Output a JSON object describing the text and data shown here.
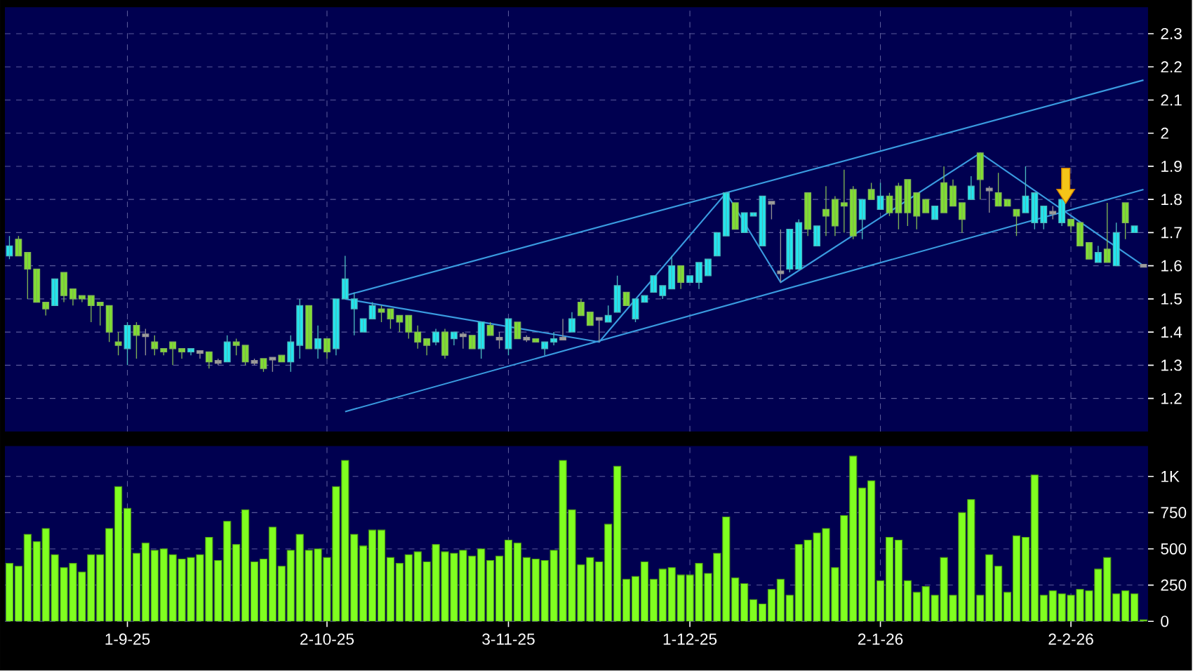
{
  "chart_data": [
    {
      "type": "candlestick",
      "tick_labels": "y",
      "grid": true,
      "ylim": [
        1.1,
        2.38
      ],
      "yticks": [
        1.2,
        1.3,
        1.4,
        1.5,
        1.6,
        1.7,
        1.8,
        1.9,
        2,
        2.1,
        2.2,
        2.3
      ],
      "categories": [
        null,
        null,
        null,
        null,
        null,
        null,
        null,
        null,
        null,
        null,
        null,
        null,
        null,
        null,
        null,
        null,
        null,
        null,
        null,
        null,
        null,
        null,
        null,
        null,
        null,
        null,
        null,
        null,
        null,
        null,
        null,
        null,
        null,
        null,
        null,
        null,
        null,
        null,
        null,
        null,
        null,
        null,
        null,
        null,
        null,
        null,
        null,
        null,
        null,
        null,
        null,
        null,
        null,
        null,
        null,
        null,
        null,
        null,
        null,
        null,
        null,
        null,
        null,
        null,
        null,
        null,
        null,
        null,
        null,
        null,
        null,
        null,
        null,
        null,
        null,
        null,
        null,
        null,
        null,
        null,
        null,
        null,
        null,
        null,
        null,
        null,
        null,
        null,
        null,
        null,
        null,
        null,
        null,
        null,
        null,
        null,
        null,
        null,
        null,
        null,
        null,
        null,
        null,
        null,
        null,
        null,
        null,
        null,
        null,
        null,
        null,
        null,
        null,
        null,
        null,
        null,
        null,
        null,
        null,
        null,
        null,
        null,
        null,
        null,
        null,
        null
      ],
      "ohlc": [
        [
          1.63,
          1.69,
          1.62,
          1.66
        ],
        [
          1.68,
          1.69,
          1.63,
          1.63
        ],
        [
          1.64,
          1.64,
          1.5,
          1.59
        ],
        [
          1.59,
          1.59,
          1.49,
          1.49
        ],
        [
          1.49,
          1.49,
          1.45,
          1.47
        ],
        [
          1.48,
          1.56,
          1.48,
          1.56
        ],
        [
          1.58,
          1.58,
          1.49,
          1.51
        ],
        [
          1.53,
          1.53,
          1.48,
          1.5
        ],
        [
          1.51,
          1.51,
          1.49,
          1.5
        ],
        [
          1.51,
          1.51,
          1.43,
          1.48
        ],
        [
          1.49,
          1.49,
          1.42,
          1.48
        ],
        [
          1.48,
          1.48,
          1.37,
          1.4
        ],
        [
          1.37,
          1.4,
          1.33,
          1.36
        ],
        [
          1.35,
          1.43,
          1.3,
          1.42
        ],
        [
          1.42,
          1.43,
          1.32,
          1.39
        ],
        [
          1.39,
          1.41,
          1.33,
          1.39
        ],
        [
          1.37,
          1.39,
          1.33,
          1.35
        ],
        [
          1.35,
          1.35,
          1.33,
          1.34
        ],
        [
          1.37,
          1.37,
          1.3,
          1.35
        ],
        [
          1.35,
          1.35,
          1.32,
          1.34
        ],
        [
          1.34,
          1.35,
          1.33,
          1.35
        ],
        [
          1.34,
          1.34,
          1.32,
          1.34
        ],
        [
          1.34,
          1.34,
          1.29,
          1.31
        ],
        [
          1.31,
          1.32,
          1.3,
          1.31
        ],
        [
          1.31,
          1.39,
          1.31,
          1.37
        ],
        [
          1.37,
          1.38,
          1.33,
          1.36
        ],
        [
          1.36,
          1.36,
          1.3,
          1.31
        ],
        [
          1.31,
          1.32,
          1.3,
          1.31
        ],
        [
          1.32,
          1.32,
          1.28,
          1.29
        ],
        [
          1.32,
          1.32,
          1.28,
          1.32
        ],
        [
          1.33,
          1.33,
          1.31,
          1.31
        ],
        [
          1.31,
          1.39,
          1.28,
          1.37
        ],
        [
          1.36,
          1.5,
          1.32,
          1.48
        ],
        [
          1.48,
          1.48,
          1.35,
          1.35
        ],
        [
          1.35,
          1.42,
          1.32,
          1.38
        ],
        [
          1.38,
          1.38,
          1.32,
          1.34
        ],
        [
          1.35,
          1.5,
          1.33,
          1.5
        ],
        [
          1.5,
          1.63,
          1.5,
          1.56
        ],
        [
          1.47,
          1.52,
          1.39,
          1.5
        ],
        [
          1.4,
          1.44,
          1.4,
          1.44
        ],
        [
          1.44,
          1.49,
          1.44,
          1.48
        ],
        [
          1.47,
          1.48,
          1.43,
          1.46
        ],
        [
          1.47,
          1.47,
          1.41,
          1.44
        ],
        [
          1.45,
          1.45,
          1.4,
          1.43
        ],
        [
          1.45,
          1.45,
          1.38,
          1.4
        ],
        [
          1.4,
          1.42,
          1.35,
          1.37
        ],
        [
          1.38,
          1.38,
          1.33,
          1.36
        ],
        [
          1.37,
          1.41,
          1.36,
          1.4
        ],
        [
          1.4,
          1.41,
          1.32,
          1.33
        ],
        [
          1.38,
          1.4,
          1.36,
          1.4
        ],
        [
          1.39,
          1.4,
          1.35,
          1.39
        ],
        [
          1.39,
          1.39,
          1.35,
          1.35
        ],
        [
          1.35,
          1.43,
          1.32,
          1.43
        ],
        [
          1.42,
          1.43,
          1.39,
          1.39
        ],
        [
          1.38,
          1.4,
          1.35,
          1.38
        ],
        [
          1.35,
          1.44,
          1.33,
          1.44
        ],
        [
          1.43,
          1.43,
          1.38,
          1.38
        ],
        [
          1.38,
          1.39,
          1.37,
          1.38
        ],
        [
          1.38,
          1.38,
          1.37,
          1.37
        ],
        [
          1.35,
          1.37,
          1.33,
          1.37
        ],
        [
          1.37,
          1.4,
          1.36,
          1.38
        ],
        [
          1.38,
          1.44,
          1.38,
          1.38
        ],
        [
          1.4,
          1.46,
          1.4,
          1.44
        ],
        [
          1.49,
          1.5,
          1.45,
          1.45
        ],
        [
          1.46,
          1.46,
          1.42,
          1.42
        ],
        [
          1.44,
          1.44,
          1.37,
          1.44
        ],
        [
          1.43,
          1.48,
          1.43,
          1.45
        ],
        [
          1.46,
          1.57,
          1.46,
          1.54
        ],
        [
          1.52,
          1.52,
          1.48,
          1.48
        ],
        [
          1.44,
          1.5,
          1.43,
          1.5
        ],
        [
          1.49,
          1.51,
          1.49,
          1.51
        ],
        [
          1.52,
          1.57,
          1.52,
          1.57
        ],
        [
          1.51,
          1.54,
          1.5,
          1.54
        ],
        [
          1.53,
          1.63,
          1.53,
          1.6
        ],
        [
          1.6,
          1.6,
          1.53,
          1.55
        ],
        [
          1.55,
          1.57,
          1.55,
          1.57
        ],
        [
          1.55,
          1.61,
          1.53,
          1.61
        ],
        [
          1.57,
          1.62,
          1.57,
          1.62
        ],
        [
          1.63,
          1.7,
          1.63,
          1.7
        ],
        [
          1.69,
          1.82,
          1.69,
          1.82
        ],
        [
          1.79,
          1.79,
          1.71,
          1.71
        ],
        [
          1.7,
          1.76,
          1.7,
          1.76
        ],
        [
          1.75,
          1.76,
          1.75,
          1.76
        ],
        [
          1.66,
          1.81,
          1.66,
          1.81
        ],
        [
          1.79,
          1.79,
          1.74,
          1.79
        ],
        [
          1.58,
          1.71,
          1.55,
          1.58
        ],
        [
          1.59,
          1.71,
          1.58,
          1.71
        ],
        [
          1.59,
          1.74,
          1.59,
          1.73
        ],
        [
          1.82,
          1.82,
          1.69,
          1.71
        ],
        [
          1.66,
          1.72,
          1.66,
          1.72
        ],
        [
          1.77,
          1.84,
          1.69,
          1.75
        ],
        [
          1.8,
          1.81,
          1.69,
          1.72
        ],
        [
          1.79,
          1.89,
          1.7,
          1.78
        ],
        [
          1.83,
          1.84,
          1.68,
          1.69
        ],
        [
          1.74,
          1.8,
          1.68,
          1.8
        ],
        [
          1.83,
          1.85,
          1.8,
          1.8
        ],
        [
          1.77,
          1.85,
          1.77,
          1.81
        ],
        [
          1.81,
          1.82,
          1.75,
          1.76
        ],
        [
          1.84,
          1.85,
          1.71,
          1.76
        ],
        [
          1.86,
          1.86,
          1.72,
          1.76
        ],
        [
          1.82,
          1.82,
          1.71,
          1.75
        ],
        [
          1.8,
          1.8,
          1.76,
          1.76
        ],
        [
          1.74,
          1.78,
          1.74,
          1.78
        ],
        [
          1.85,
          1.9,
          1.76,
          1.76
        ],
        [
          1.84,
          1.86,
          1.78,
          1.78
        ],
        [
          1.79,
          1.79,
          1.7,
          1.74
        ],
        [
          1.8,
          1.87,
          1.8,
          1.84
        ],
        [
          1.94,
          1.94,
          1.8,
          1.86
        ],
        [
          1.83,
          1.84,
          1.76,
          1.83
        ],
        [
          1.82,
          1.88,
          1.78,
          1.78
        ],
        [
          1.8,
          1.8,
          1.78,
          1.78
        ],
        [
          1.77,
          1.77,
          1.69,
          1.75
        ],
        [
          1.76,
          1.9,
          1.76,
          1.81
        ],
        [
          1.73,
          1.82,
          1.71,
          1.82
        ],
        [
          1.73,
          1.78,
          1.71,
          1.78
        ],
        [
          1.76,
          1.78,
          1.74,
          1.76
        ],
        [
          1.73,
          1.8,
          1.72,
          1.8
        ],
        [
          1.74,
          1.74,
          1.7,
          1.72
        ],
        [
          1.73,
          1.73,
          1.66,
          1.66
        ],
        [
          1.67,
          1.67,
          1.62,
          1.62
        ],
        [
          1.61,
          1.66,
          1.61,
          1.64
        ],
        [
          1.65,
          1.79,
          1.61,
          1.61
        ],
        [
          1.6,
          1.73,
          1.6,
          1.7
        ],
        [
          1.79,
          1.79,
          1.68,
          1.73
        ],
        [
          1.7,
          1.72,
          1.7,
          1.72
        ],
        [
          1.6,
          1.6,
          1.6,
          1.6
        ]
      ],
      "colors": [
        "#20e8f0",
        "#80e030",
        "#80e030",
        "#80e030",
        "#80e030",
        "#20e8f0",
        "#80e030",
        "#80e030",
        "#80e030",
        "#80e030",
        "#80e030",
        "#80e030",
        "#80e030",
        "#20e8f0",
        "#80e030",
        "#a0a0a0",
        "#80e030",
        "#80e030",
        "#80e030",
        "#80e030",
        "#20e8f0",
        "#a0a0a0",
        "#80e030",
        "#a0a0a0",
        "#20e8f0",
        "#80e030",
        "#80e030",
        "#a0a0a0",
        "#80e030",
        "#a0a0a0",
        "#80e030",
        "#20e8f0",
        "#20e8f0",
        "#80e030",
        "#20e8f0",
        "#80e030",
        "#20e8f0",
        "#20e8f0",
        "#20e8f0",
        "#20e8f0",
        "#20e8f0",
        "#80e030",
        "#80e030",
        "#80e030",
        "#80e030",
        "#80e030",
        "#80e030",
        "#20e8f0",
        "#80e030",
        "#20e8f0",
        "#a0a0a0",
        "#80e030",
        "#20e8f0",
        "#80e030",
        "#a0a0a0",
        "#20e8f0",
        "#80e030",
        "#a0a0a0",
        "#80e030",
        "#20e8f0",
        "#20e8f0",
        "#a0a0a0",
        "#20e8f0",
        "#80e030",
        "#80e030",
        "#a0a0a0",
        "#20e8f0",
        "#20e8f0",
        "#80e030",
        "#20e8f0",
        "#20e8f0",
        "#20e8f0",
        "#20e8f0",
        "#20e8f0",
        "#80e030",
        "#20e8f0",
        "#20e8f0",
        "#20e8f0",
        "#20e8f0",
        "#20e8f0",
        "#80e030",
        "#20e8f0",
        "#20e8f0",
        "#20e8f0",
        "#a0a0a0",
        "#a0a0a0",
        "#20e8f0",
        "#20e8f0",
        "#80e030",
        "#20e8f0",
        "#80e030",
        "#80e030",
        "#80e030",
        "#80e030",
        "#20e8f0",
        "#80e030",
        "#20e8f0",
        "#80e030",
        "#80e030",
        "#80e030",
        "#80e030",
        "#80e030",
        "#20e8f0",
        "#80e030",
        "#80e030",
        "#80e030",
        "#20e8f0",
        "#80e030",
        "#a0a0a0",
        "#80e030",
        "#80e030",
        "#80e030",
        "#20e8f0",
        "#20e8f0",
        "#20e8f0",
        "#a0a0a0",
        "#20e8f0",
        "#80e030",
        "#80e030",
        "#80e030",
        "#20e8f0",
        "#80e030",
        "#20e8f0",
        "#80e030",
        "#20e8f0",
        "#a0a0a0"
      ],
      "series": [
        {
          "type": "line",
          "color": "#3a9be0",
          "values": [
            null,
            null,
            null,
            null,
            null,
            null,
            null,
            null,
            null,
            null,
            null,
            null,
            null,
            null,
            null,
            null,
            null,
            null,
            null,
            null,
            null,
            null,
            null,
            null,
            null,
            null,
            null,
            null,
            null,
            null,
            null,
            null,
            null,
            null,
            null,
            null,
            null,
            1.51,
            null,
            null,
            null,
            null,
            null,
            null,
            null,
            null,
            null,
            null,
            null,
            null,
            null,
            null,
            null,
            null,
            null,
            null,
            null,
            null,
            null,
            null,
            null,
            null,
            null,
            null,
            null,
            null,
            null,
            null,
            null,
            null,
            null,
            null,
            null,
            null,
            null,
            null,
            null,
            null,
            null,
            null,
            null,
            null,
            null,
            null,
            null,
            null,
            null,
            null,
            null,
            null,
            null,
            null,
            null,
            null,
            null,
            null,
            null,
            null,
            null,
            null,
            null,
            null,
            null,
            null,
            null,
            null,
            null,
            null,
            null,
            null,
            null,
            null,
            null,
            null,
            null,
            null,
            null,
            null,
            null,
            null,
            null,
            null,
            null,
            null,
            null,
            2.16
          ]
        },
        {
          "type": "line",
          "color": "#3a9be0",
          "values": [
            null,
            null,
            null,
            null,
            null,
            null,
            null,
            null,
            null,
            null,
            null,
            null,
            null,
            null,
            null,
            null,
            null,
            null,
            null,
            null,
            null,
            null,
            null,
            null,
            null,
            null,
            null,
            null,
            null,
            null,
            null,
            null,
            null,
            null,
            null,
            null,
            null,
            1.16,
            null,
            null,
            null,
            null,
            null,
            null,
            null,
            null,
            null,
            null,
            null,
            null,
            null,
            null,
            null,
            null,
            null,
            null,
            null,
            null,
            null,
            null,
            null,
            null,
            null,
            null,
            null,
            null,
            null,
            null,
            null,
            null,
            null,
            null,
            null,
            null,
            null,
            null,
            null,
            null,
            null,
            null,
            null,
            null,
            null,
            null,
            null,
            null,
            null,
            null,
            null,
            null,
            null,
            null,
            null,
            null,
            null,
            null,
            null,
            null,
            null,
            null,
            null,
            null,
            null,
            null,
            null,
            null,
            null,
            null,
            null,
            null,
            null,
            null,
            null,
            null,
            null,
            null,
            null,
            null,
            null,
            null,
            null,
            null,
            null,
            null,
            null,
            1.83
          ]
        },
        {
          "type": "line",
          "color": "#3a9be0",
          "values": [
            null,
            null,
            null,
            null,
            null,
            null,
            null,
            null,
            null,
            null,
            null,
            null,
            null,
            null,
            null,
            null,
            null,
            null,
            null,
            null,
            null,
            null,
            null,
            null,
            null,
            null,
            null,
            null,
            null,
            null,
            null,
            null,
            null,
            null,
            null,
            null,
            null,
            1.5,
            null,
            null,
            null,
            null,
            null,
            null,
            null,
            null,
            null,
            null,
            null,
            null,
            null,
            null,
            null,
            null,
            null,
            null,
            null,
            null,
            null,
            null,
            null,
            null,
            null,
            null,
            null,
            1.37,
            null,
            null,
            null,
            null,
            null,
            null,
            null,
            null,
            null,
            null,
            null,
            null,
            null,
            1.82,
            null,
            null,
            null,
            null,
            null,
            1.55,
            null,
            null,
            null,
            null,
            null,
            null,
            null,
            null,
            null,
            null,
            null,
            null,
            null,
            null,
            null,
            null,
            null,
            null,
            null,
            null,
            null,
            1.94,
            null,
            null,
            null,
            null,
            null,
            null,
            null,
            null,
            null,
            null,
            null,
            null,
            null,
            null,
            null,
            null,
            null,
            1.6
          ]
        }
      ]
    },
    {
      "type": "bar",
      "grid": true,
      "color": "#80ff20",
      "ylim": [
        0,
        1210
      ],
      "yticks": [
        0,
        250,
        500,
        750,
        {
          "value": 1000,
          "label": "1K"
        }
      ],
      "categories": [
        null,
        null,
        null,
        null,
        null,
        null,
        null,
        null,
        null,
        null,
        null,
        null,
        null,
        "1-9-25",
        null,
        null,
        null,
        null,
        null,
        null,
        null,
        null,
        null,
        null,
        null,
        null,
        null,
        null,
        null,
        null,
        null,
        null,
        null,
        null,
        null,
        "2-10-25",
        null,
        null,
        null,
        null,
        null,
        null,
        null,
        null,
        null,
        null,
        null,
        null,
        null,
        null,
        null,
        null,
        null,
        null,
        null,
        "3-11-25",
        null,
        null,
        null,
        null,
        null,
        null,
        null,
        null,
        null,
        null,
        null,
        null,
        null,
        null,
        null,
        null,
        null,
        null,
        null,
        "1-12-25",
        null,
        null,
        null,
        null,
        null,
        null,
        null,
        null,
        null,
        null,
        null,
        null,
        null,
        null,
        null,
        null,
        null,
        null,
        null,
        null,
        "2-1-26",
        null,
        null,
        null,
        null,
        null,
        null,
        null,
        null,
        null,
        null,
        null,
        null,
        null,
        null,
        null,
        null,
        null,
        null,
        null,
        null,
        "2-2-26",
        null,
        null,
        null,
        null,
        null,
        null,
        null,
        null
      ],
      "values": [
        400,
        380,
        600,
        550,
        640,
        460,
        370,
        400,
        340,
        460,
        460,
        640,
        930,
        780,
        470,
        540,
        490,
        500,
        460,
        430,
        440,
        460,
        580,
        420,
        690,
        530,
        770,
        410,
        430,
        650,
        380,
        490,
        600,
        490,
        500,
        440,
        930,
        1110,
        600,
        520,
        630,
        630,
        440,
        400,
        460,
        480,
        410,
        530,
        480,
        470,
        490,
        450,
        500,
        420,
        450,
        560,
        540,
        440,
        430,
        420,
        490,
        1110,
        770,
        390,
        440,
        410,
        670,
        1070,
        290,
        310,
        410,
        290,
        360,
        370,
        320,
        320,
        400,
        330,
        470,
        720,
        300,
        260,
        150,
        120,
        220,
        290,
        180,
        530,
        560,
        610,
        640,
        370,
        730,
        1140,
        920,
        970,
        280,
        580,
        560,
        280,
        200,
        240,
        180,
        440,
        180,
        750,
        840,
        180,
        460,
        380,
        200,
        590,
        580,
        1010,
        180,
        210,
        190,
        180,
        220,
        210,
        360,
        440,
        190,
        210,
        190,
        10
      ]
    }
  ]
}
